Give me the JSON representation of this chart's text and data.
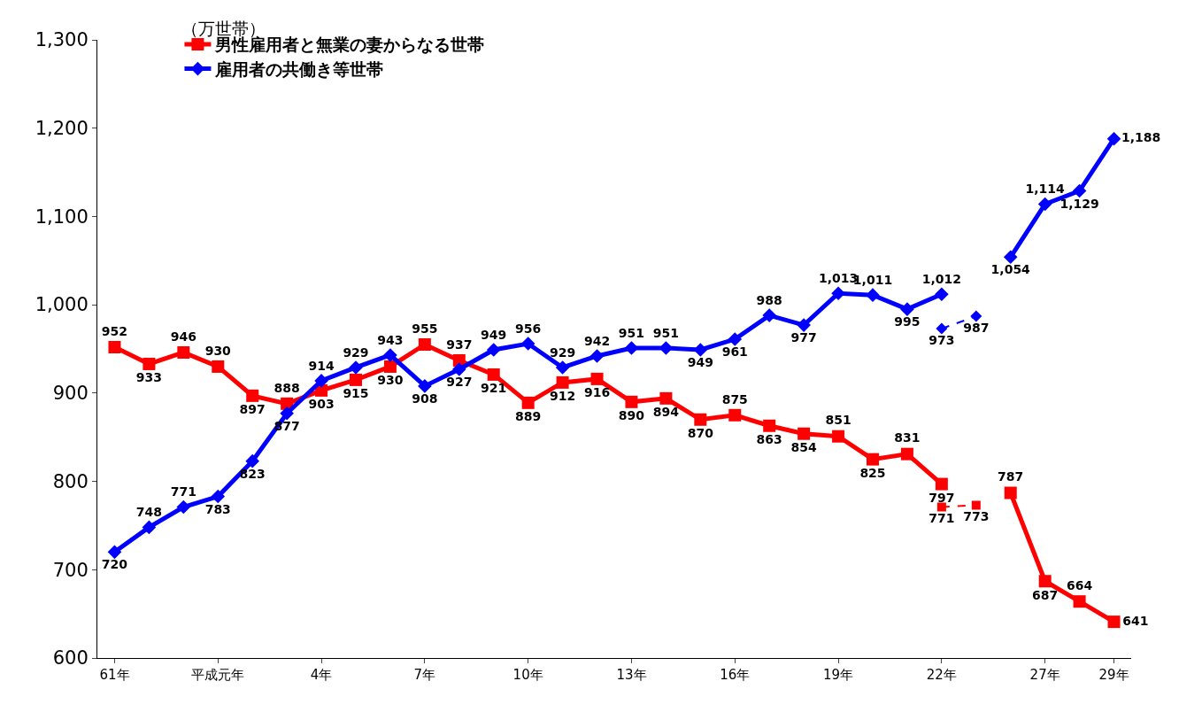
{
  "chart_data": {
    "type": "line",
    "ylabel": "（万世帯）",
    "categories": [
      "61年",
      null,
      null,
      "平成元年",
      null,
      null,
      "4年",
      null,
      null,
      "7年",
      null,
      null,
      "10年",
      null,
      null,
      "13年",
      null,
      null,
      "16年",
      null,
      null,
      "19年",
      null,
      null,
      "22年",
      null,
      null,
      "27年",
      null,
      "29年"
    ],
    "series": [
      {
        "name": "男性雇用者と無業の妻からなる世帯",
        "color": "#ff0000",
        "marker": "square",
        "line_style": "solid",
        "value_labels": [
          "952",
          "933",
          "946",
          "930",
          "897",
          "888",
          "903",
          "915",
          "930",
          "955",
          "937",
          "921",
          "889",
          "912",
          "916",
          "890",
          "894",
          "870",
          "875",
          "863",
          "854",
          "851",
          "825",
          "831",
          "797",
          null,
          "787",
          "687",
          "664",
          "641"
        ],
        "values": [
          952,
          933,
          946,
          930,
          897,
          888,
          903,
          915,
          930,
          955,
          937,
          921,
          889,
          912,
          916,
          890,
          894,
          870,
          875,
          863,
          854,
          851,
          825,
          831,
          797,
          null,
          787,
          687,
          664,
          641
        ]
      },
      {
        "name": "雇用者の共働き等世帯",
        "color": "#0000ff",
        "marker": "diamond",
        "line_style": "solid",
        "value_labels": [
          "720",
          "748",
          "771",
          "783",
          "823",
          "877",
          "914",
          "929",
          "943",
          "908",
          "927",
          "949",
          "956",
          "929",
          "942",
          "951",
          "951",
          "949",
          "961",
          "988",
          "977",
          "1,013",
          "1,011",
          "995",
          "1,012",
          null,
          "1,054",
          "1,114",
          "1,129",
          "1,188"
        ],
        "values": [
          720,
          748,
          771,
          783,
          823,
          877,
          914,
          929,
          943,
          908,
          927,
          949,
          956,
          929,
          942,
          951,
          951,
          949,
          961,
          988,
          977,
          1013,
          1011,
          995,
          1012,
          null,
          1054,
          1114,
          1129,
          1188
        ]
      },
      {
        "color": "#ff0000",
        "marker": "square",
        "line_style": "dashed",
        "value_labels": [
          null,
          null,
          null,
          null,
          null,
          null,
          null,
          null,
          null,
          null,
          null,
          null,
          null,
          null,
          null,
          null,
          null,
          null,
          null,
          null,
          null,
          null,
          null,
          null,
          "771",
          "773",
          null,
          null,
          null,
          null
        ],
        "values": [
          null,
          null,
          null,
          null,
          null,
          null,
          null,
          null,
          null,
          null,
          null,
          null,
          null,
          null,
          null,
          null,
          null,
          null,
          null,
          null,
          null,
          null,
          null,
          null,
          771,
          773,
          null,
          null,
          null,
          null
        ]
      },
      {
        "color": "#0000ff",
        "marker": "diamond",
        "line_style": "dashed",
        "value_labels": [
          null,
          null,
          null,
          null,
          null,
          null,
          null,
          null,
          null,
          null,
          null,
          null,
          null,
          null,
          null,
          null,
          null,
          null,
          null,
          null,
          null,
          null,
          null,
          null,
          "973",
          "987",
          null,
          null,
          null,
          null
        ],
        "values": [
          null,
          null,
          null,
          null,
          null,
          null,
          null,
          null,
          null,
          null,
          null,
          null,
          null,
          null,
          null,
          null,
          null,
          null,
          null,
          null,
          null,
          null,
          null,
          null,
          973,
          987,
          null,
          null,
          null,
          null
        ]
      }
    ],
    "ylim": [
      600,
      1300
    ],
    "yticks": [
      {
        "value": 600,
        "label": "600"
      },
      {
        "value": 700,
        "label": "700"
      },
      {
        "value": 800,
        "label": "800"
      },
      {
        "value": 900,
        "label": "900"
      },
      {
        "value": 1000,
        "label": "1,000"
      },
      {
        "value": 1100,
        "label": "1,100"
      },
      {
        "value": 1200,
        "label": "1,200"
      },
      {
        "value": 1300,
        "label": "1,300"
      }
    ],
    "grid": false,
    "legend": "top left"
  }
}
